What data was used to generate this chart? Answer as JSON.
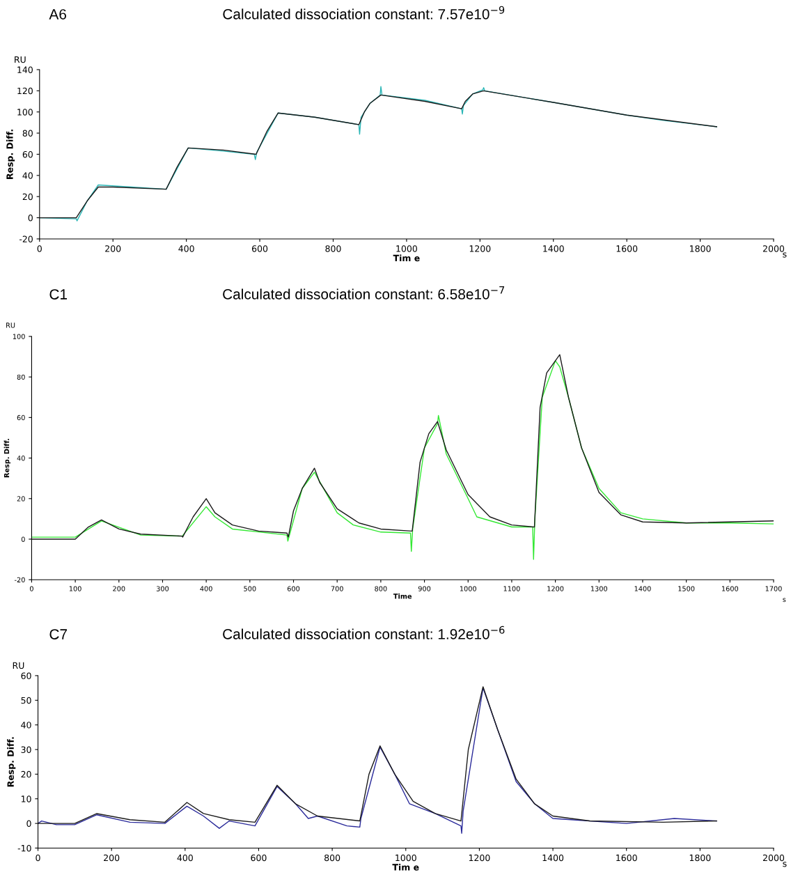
{
  "chart_data": [
    {
      "type": "line",
      "title": "A6",
      "subtitle": "Calculated dissociation constant: 7.57e10$^{−9}$",
      "xlabel": "Tim e",
      "ylabel": "Resp. Diff.",
      "annotations": [
        "RU",
        "s"
      ],
      "xlim": [
        0,
        2000
      ],
      "xticks": [
        0,
        200,
        400,
        600,
        800,
        1000,
        1200,
        1400,
        1600,
        1800,
        2000
      ],
      "ylim": [
        -20,
        140
      ],
      "yticks": [
        -20,
        0,
        20,
        40,
        60,
        80,
        100,
        120,
        140
      ],
      "grid": false,
      "marker": "none",
      "line_style": "solid",
      "series": [
        {
          "color": "#2ab5b5",
          "x": [
            0,
            50,
            100,
            102,
            130,
            160,
            250,
            345,
            405,
            500,
            585,
            588,
            592,
            650,
            750,
            870,
            872,
            876,
            900,
            928,
            930,
            933,
            1050,
            1150,
            1152,
            1155,
            1180,
            1208,
            1210,
            1213,
            1400,
            1600,
            1700,
            1845
          ],
          "values": [
            0,
            -0.5,
            -1,
            -3,
            16,
            31,
            29,
            27,
            66,
            63,
            60,
            55,
            62,
            99,
            95,
            88,
            79,
            95,
            108,
            116,
            124,
            116,
            111,
            103,
            98,
            106,
            117,
            121,
            123,
            120,
            109,
            97,
            92,
            86
          ]
        },
        {
          "color": "#1a1a1a",
          "x": [
            0,
            100,
            130,
            160,
            200,
            345,
            375,
            405,
            500,
            590,
            620,
            650,
            750,
            870,
            885,
            900,
            930,
            1050,
            1150,
            1160,
            1180,
            1210,
            1400,
            1600,
            1845
          ],
          "values": [
            0,
            0,
            16,
            29,
            29,
            27,
            48,
            66,
            64,
            60,
            82,
            99,
            95,
            88,
            100,
            108,
            116,
            110,
            103,
            110,
            117,
            120,
            109,
            97,
            86
          ]
        }
      ]
    },
    {
      "type": "line",
      "title": "C1",
      "subtitle": "Calculated dissociation constant: 6.58e10$^{−7}$",
      "xlabel": "Time",
      "ylabel": "Resp. Diff.",
      "annotations": [
        "RU",
        "s"
      ],
      "xlim": [
        0,
        1700
      ],
      "xticks": [
        0,
        100,
        200,
        300,
        400,
        500,
        600,
        700,
        800,
        900,
        1000,
        1100,
        1200,
        1300,
        1400,
        1500,
        1600,
        1700
      ],
      "ylim": [
        -20,
        100
      ],
      "yticks": [
        -20,
        0,
        20,
        40,
        60,
        80,
        100
      ],
      "grid": false,
      "marker": "none",
      "line_style": "solid",
      "series": [
        {
          "color": "#33e833",
          "x": [
            0,
            100,
            160,
            250,
            345,
            400,
            420,
            460,
            585,
            587,
            620,
            648,
            700,
            737,
            800,
            868,
            870,
            873,
            900,
            930,
            932,
            950,
            1000,
            1020,
            1100,
            1148,
            1150,
            1153,
            1170,
            1200,
            1210,
            1230,
            1260,
            1300,
            1350,
            1400,
            1500,
            1600,
            1700
          ],
          "values": [
            1,
            1,
            9,
            2,
            1.5,
            16,
            11,
            5,
            2,
            -1,
            25,
            33,
            13,
            7,
            3.5,
            3,
            -6,
            5,
            45,
            57,
            61,
            42,
            20,
            11,
            6,
            6,
            -10,
            10,
            70,
            88,
            85,
            70,
            45,
            25,
            13,
            10,
            8,
            8,
            7.5
          ]
        },
        {
          "color": "#1a1a1a",
          "x": [
            0,
            100,
            130,
            160,
            200,
            250,
            345,
            346,
            370,
            400,
            420,
            460,
            520,
            585,
            588,
            600,
            620,
            648,
            660,
            700,
            750,
            800,
            870,
            872,
            890,
            910,
            930,
            950,
            1000,
            1050,
            1100,
            1150,
            1152,
            1165,
            1180,
            1210,
            1230,
            1260,
            1300,
            1350,
            1400,
            1500,
            1700
          ],
          "values": [
            0,
            0,
            6,
            9.5,
            5,
            2.5,
            1.5,
            1,
            11,
            20,
            13,
            7,
            4,
            3,
            1,
            14,
            25,
            35,
            28,
            15,
            8,
            5,
            4,
            4,
            38,
            52,
            58,
            44,
            22,
            11,
            7,
            6,
            6,
            65,
            82,
            91,
            70,
            45,
            23,
            12,
            8.5,
            8,
            9
          ]
        }
      ]
    },
    {
      "type": "line",
      "title": "C7",
      "subtitle": "Calculated dissociation constant: 1.92e10$^{−6}$",
      "xlabel": "Tim e",
      "ylabel": "Resp. Diff.",
      "annotations": [
        "RU",
        "s"
      ],
      "xlim": [
        0,
        2000
      ],
      "xticks": [
        0,
        200,
        400,
        600,
        800,
        1000,
        1200,
        1400,
        1600,
        1800,
        2000
      ],
      "ylim": [
        -10,
        60
      ],
      "yticks": [
        -10,
        0,
        10,
        20,
        30,
        40,
        50,
        60
      ],
      "grid": false,
      "marker": "none",
      "line_style": "solid",
      "series": [
        {
          "color": "#2a2a9a",
          "x": [
            0,
            10,
            50,
            100,
            160,
            250,
            345,
            405,
            450,
            493,
            520,
            590,
            650,
            700,
            735,
            760,
            840,
            875,
            878,
            930,
            970,
            1010,
            1080,
            1150,
            1152,
            1156,
            1210,
            1250,
            1300,
            1350,
            1400,
            1600,
            1730,
            1845
          ],
          "values": [
            0,
            1,
            -0.5,
            -0.5,
            3.5,
            0.5,
            0,
            7,
            3,
            -2,
            1,
            -1,
            15,
            8,
            2,
            3,
            -1,
            -1.5,
            2,
            31,
            20,
            8,
            4,
            -1,
            -4,
            5,
            55,
            38,
            17,
            8,
            2,
            0,
            2,
            1
          ]
        },
        {
          "color": "#1a1a1a",
          "x": [
            0,
            100,
            160,
            250,
            345,
            405,
            450,
            520,
            590,
            620,
            650,
            700,
            760,
            875,
            900,
            930,
            970,
            1020,
            1080,
            1150,
            1170,
            1210,
            1250,
            1300,
            1350,
            1400,
            1500,
            1700,
            1845
          ],
          "values": [
            0,
            0,
            4,
            1.5,
            0.5,
            8.5,
            4,
            1.5,
            0.5,
            8,
            15.5,
            8,
            3,
            1,
            20,
            31.5,
            20,
            9,
            4,
            1,
            30,
            55.5,
            38,
            18,
            8,
            3,
            1,
            0.5,
            1
          ]
        }
      ]
    }
  ]
}
